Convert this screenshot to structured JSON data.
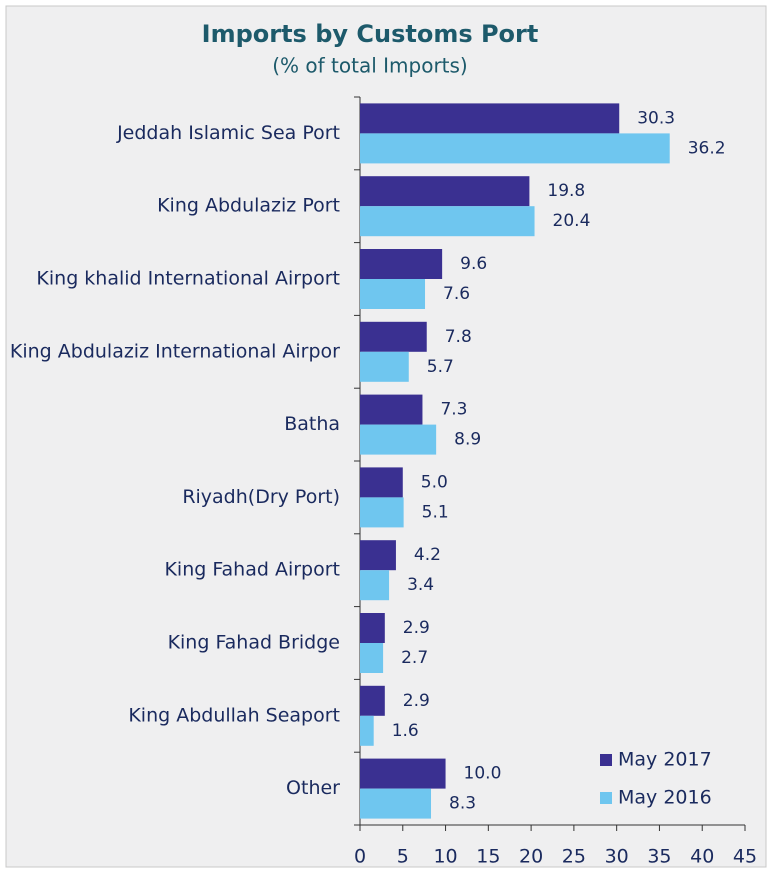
{
  "chart_data": {
    "type": "barh",
    "title": "Imports by Customs Port",
    "subtitle": "(% of total Imports)",
    "categories": [
      "Jeddah Islamic Sea Port",
      "King Abdulaziz Port",
      "King khalid International Airport",
      "King Abdulaziz International Airpor",
      "Batha",
      "Riyadh(Dry Port)",
      "King Fahad Airport",
      "King Fahad Bridge",
      "King Abdullah Seaport",
      "Other"
    ],
    "series": [
      {
        "name": "May 2017",
        "color": "#3a3091",
        "values": [
          30.3,
          19.8,
          9.6,
          7.8,
          7.3,
          5.0,
          4.2,
          2.9,
          2.9,
          10.0
        ],
        "value_labels": [
          "30.3",
          "19.8",
          "9.6",
          "7.8",
          "7.3",
          "5.0",
          "4.2",
          "2.9",
          "2.9",
          "10.0"
        ]
      },
      {
        "name": "May 2016",
        "color": "#6fc6ef",
        "values": [
          36.2,
          20.4,
          7.6,
          5.7,
          8.9,
          5.1,
          3.4,
          2.7,
          1.6,
          8.3
        ],
        "value_labels": [
          "36.2",
          "20.4",
          "7.6",
          "5.7",
          "8.9",
          "5.1",
          "3.4",
          "2.7",
          "1.6",
          "8.3"
        ]
      }
    ],
    "xlim": [
      0,
      45
    ],
    "xticks": [
      0,
      5,
      10,
      15,
      20,
      25,
      30,
      35,
      40,
      45
    ],
    "legend": "lower right"
  }
}
